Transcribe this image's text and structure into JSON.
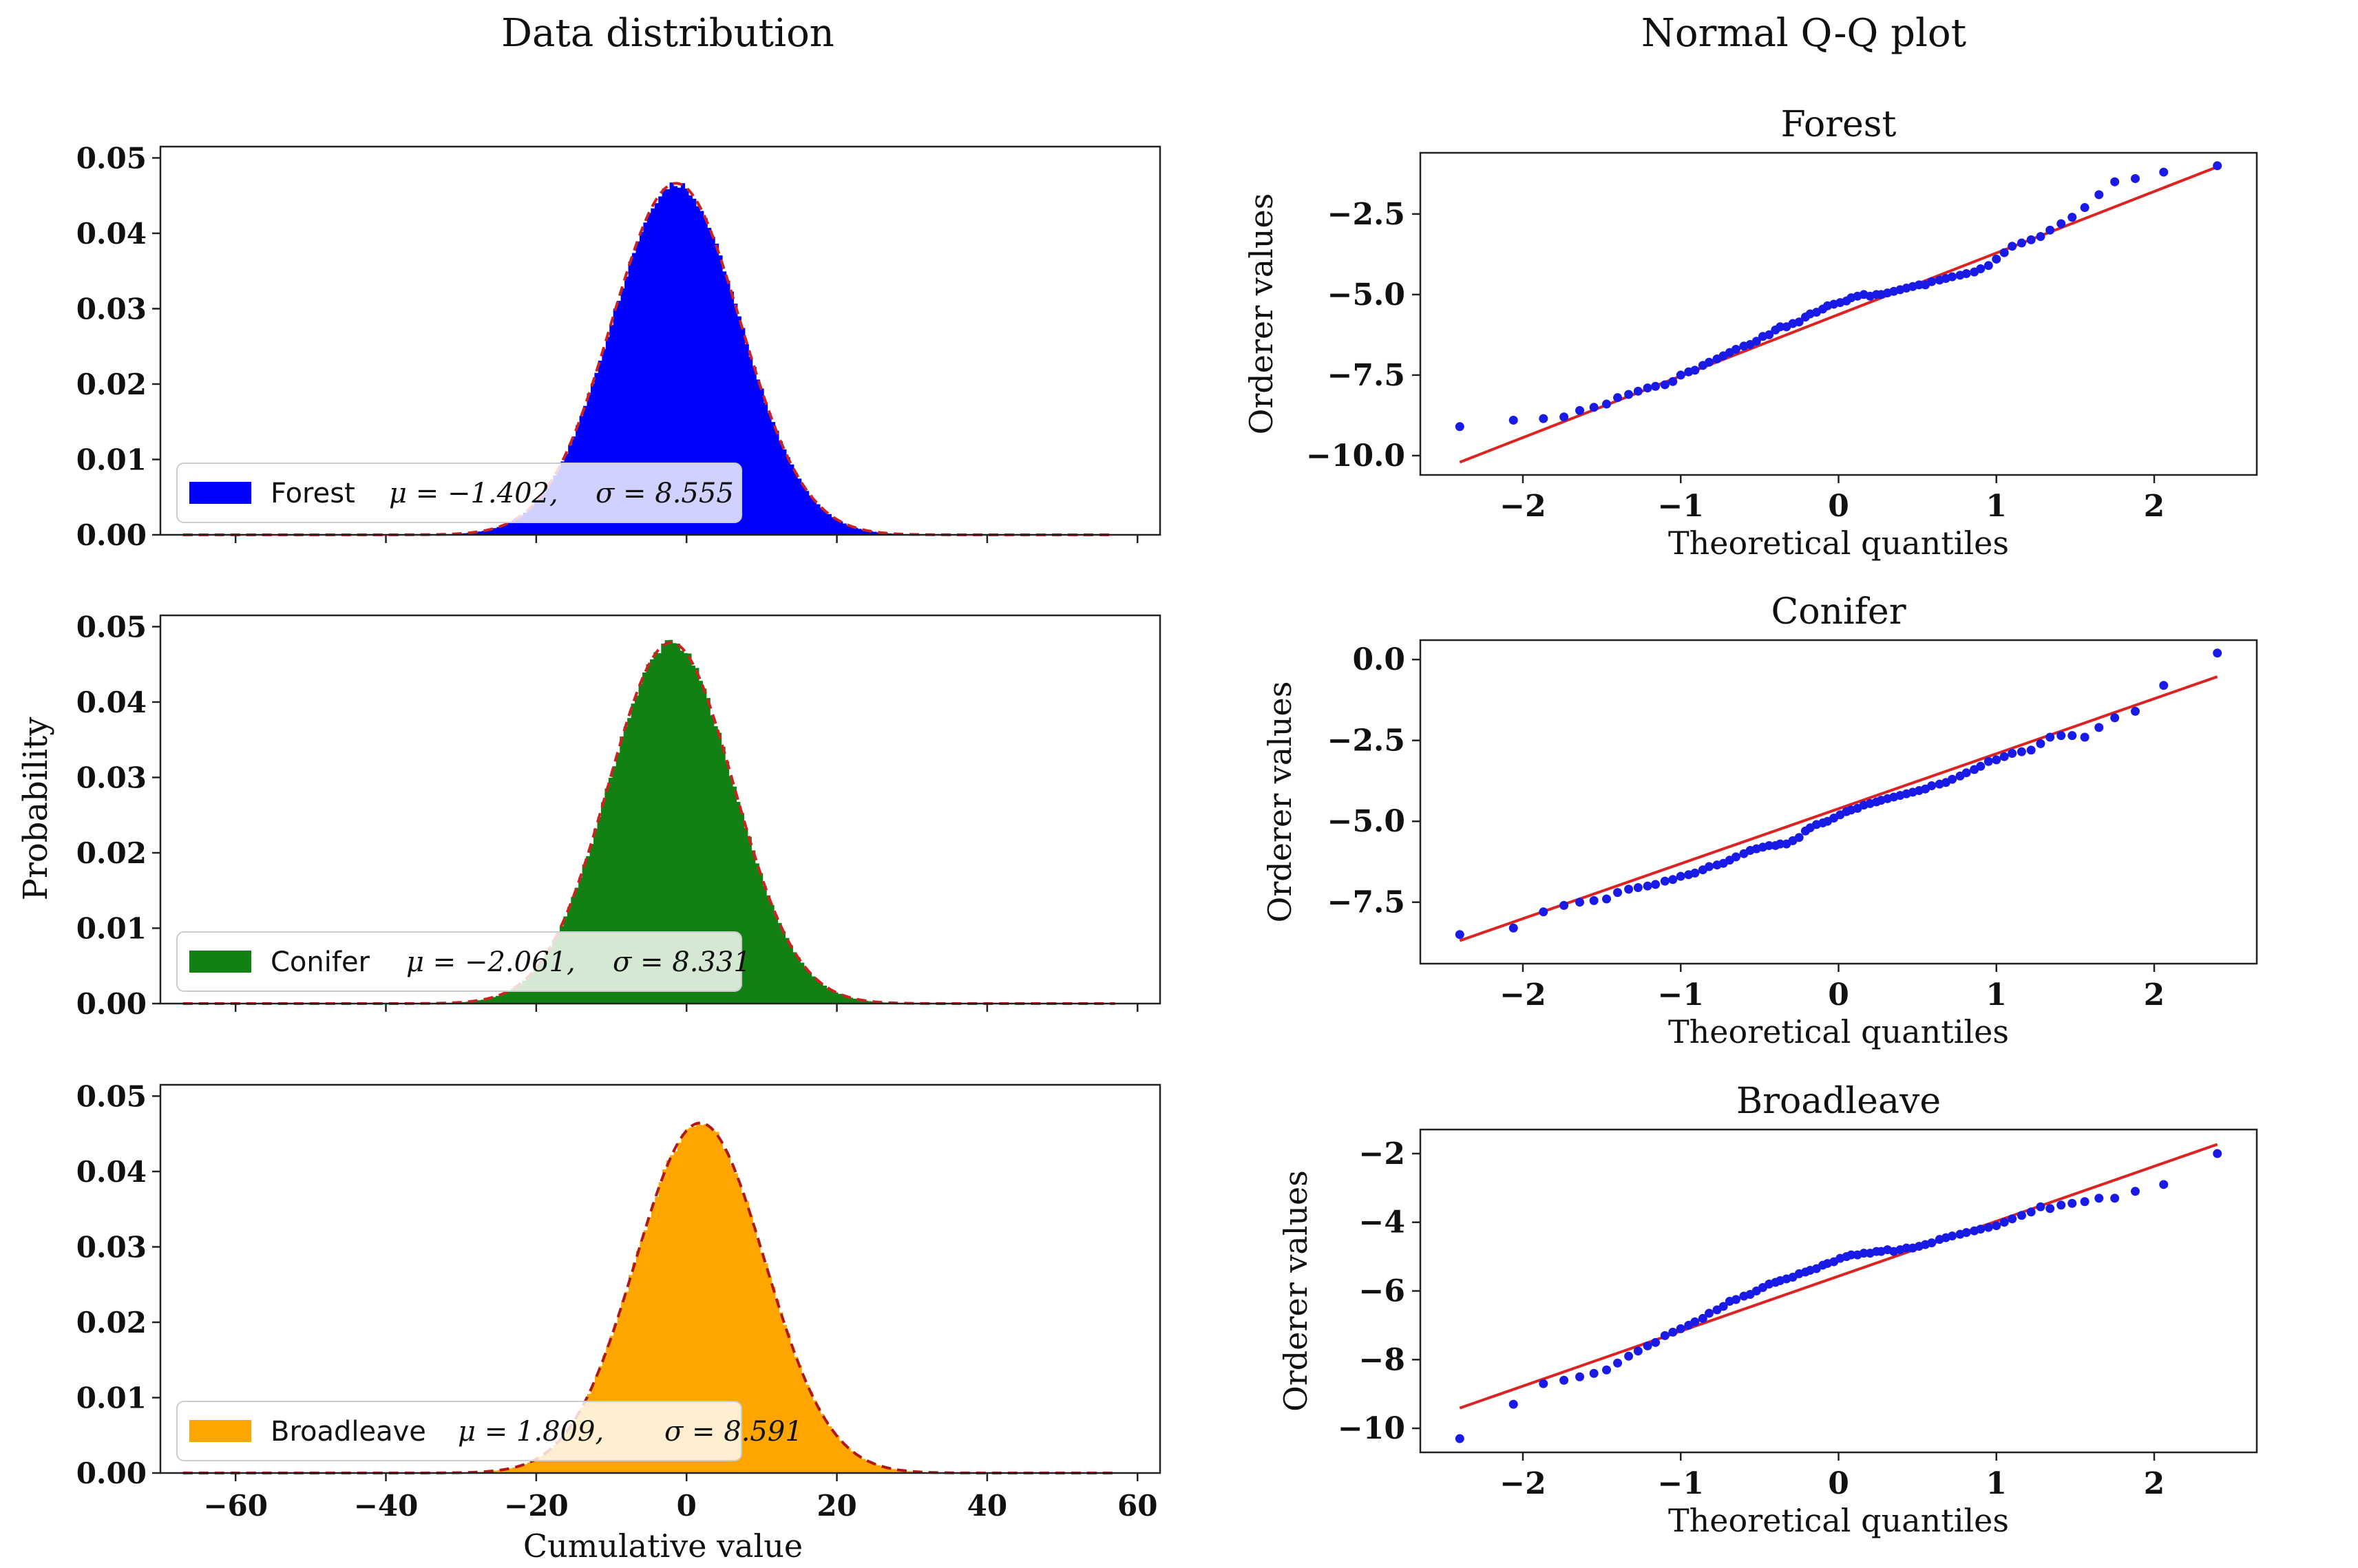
{
  "figure": {
    "left_column_title": "Data distribution",
    "right_column_title": "Normal Q-Q plot",
    "hist_ylabel": "Probability",
    "hist_xlabel": "Cumulative value",
    "qq_xlabel": "Theoretical quantiles",
    "qq_ylabel": "Orderer values"
  },
  "chart_data": [
    {
      "type": "bar",
      "panel": "histogram",
      "series": [
        {
          "name": "Forest",
          "mu_label": "μ = −1.402,",
          "sigma_label": "σ = 8.555",
          "mu": -1.402,
          "sigma": 8.555,
          "color": "#0000ff"
        }
      ],
      "fit_line": {
        "style": "dashed",
        "color": "#cc2222"
      },
      "xlim": [
        -70,
        63
      ],
      "ylim": [
        0,
        0.0515
      ],
      "yticks": [
        0.0,
        0.01,
        0.02,
        0.03,
        0.04,
        0.05
      ],
      "ytick_labels": [
        "0.00",
        "0.01",
        "0.02",
        "0.03",
        "0.04",
        "0.05"
      ],
      "legend": "bottom-left"
    },
    {
      "type": "bar",
      "panel": "histogram",
      "series": [
        {
          "name": "Conifer",
          "mu_label": "μ = −2.061,",
          "sigma_label": "σ = 8.331",
          "mu": -2.061,
          "sigma": 8.331,
          "color": "#138013"
        }
      ],
      "fit_line": {
        "style": "dashed",
        "color": "#cc2222"
      },
      "xlim": [
        -70,
        63
      ],
      "ylim": [
        0,
        0.0515
      ],
      "yticks": [
        0.0,
        0.01,
        0.02,
        0.03,
        0.04,
        0.05
      ],
      "ytick_labels": [
        "0.00",
        "0.01",
        "0.02",
        "0.03",
        "0.04",
        "0.05"
      ],
      "legend": "bottom-left"
    },
    {
      "type": "bar",
      "panel": "histogram",
      "series": [
        {
          "name": "Broadleave",
          "mu_label": "μ = 1.809,",
          "sigma_label": "σ = 8.591",
          "mu": 1.809,
          "sigma": 8.591,
          "color": "#ffa500"
        }
      ],
      "fit_line": {
        "style": "dashed",
        "color": "#b01818"
      },
      "xlim": [
        -70,
        63
      ],
      "ylim": [
        0,
        0.0515
      ],
      "yticks": [
        0.0,
        0.01,
        0.02,
        0.03,
        0.04,
        0.05
      ],
      "ytick_labels": [
        "0.00",
        "0.01",
        "0.02",
        "0.03",
        "0.04",
        "0.05"
      ],
      "xticks": [
        -60,
        -40,
        -20,
        0,
        20,
        40,
        60
      ],
      "xtick_labels": [
        "−60",
        "−40",
        "−20",
        "0",
        "20",
        "40",
        "60"
      ],
      "legend": "bottom-left"
    },
    {
      "type": "scatter",
      "panel": "qq",
      "title": "Forest",
      "xlim": [
        -2.65,
        2.65
      ],
      "ylim": [
        -10.6,
        -0.6
      ],
      "yticks": [
        -10.0,
        -7.5,
        -5.0,
        -2.5
      ],
      "ytick_labels": [
        "−10.0",
        "−7.5",
        "−5.0",
        "−2.5"
      ],
      "xticks": [
        -2,
        -1,
        0,
        1,
        2
      ],
      "xtick_labels": [
        "−2",
        "−1",
        "0",
        "1",
        "2"
      ],
      "fit": {
        "intercept": -5.62,
        "slope": 1.91,
        "x_range": [
          -2.4,
          2.4
        ],
        "color": "#dd2222"
      },
      "points": {
        "x": [
          -2.4,
          -2.06,
          -1.87,
          -1.74,
          -1.64,
          -1.55,
          -1.47,
          -1.4,
          -1.33,
          -1.27,
          -1.21,
          -1.16,
          -1.1,
          -1.05,
          -1.0,
          -0.95,
          -0.91,
          -0.86,
          -0.82,
          -0.77,
          -0.73,
          -0.69,
          -0.65,
          -0.6,
          -0.56,
          -0.52,
          -0.48,
          -0.44,
          -0.4,
          -0.37,
          -0.33,
          -0.29,
          -0.25,
          -0.21,
          -0.18,
          -0.14,
          -0.1,
          -0.07,
          -0.03,
          0.01,
          0.05,
          0.08,
          0.12,
          0.16,
          0.2,
          0.24,
          0.27,
          0.31,
          0.35,
          0.39,
          0.43,
          0.47,
          0.51,
          0.55,
          0.59,
          0.64,
          0.68,
          0.72,
          0.77,
          0.81,
          0.86,
          0.9,
          0.95,
          1.0,
          1.05,
          1.1,
          1.16,
          1.22,
          1.28,
          1.34,
          1.41,
          1.48,
          1.56,
          1.65,
          1.75,
          1.88,
          2.06,
          2.4
        ],
        "y": [
          -9.1,
          -8.9,
          -8.85,
          -8.8,
          -8.6,
          -8.5,
          -8.4,
          -8.2,
          -8.1,
          -8.0,
          -7.9,
          -7.85,
          -7.8,
          -7.7,
          -7.5,
          -7.4,
          -7.35,
          -7.2,
          -7.1,
          -7.0,
          -6.9,
          -6.8,
          -6.7,
          -6.6,
          -6.55,
          -6.45,
          -6.3,
          -6.25,
          -6.1,
          -6.0,
          -6.0,
          -5.9,
          -5.85,
          -5.7,
          -5.6,
          -5.55,
          -5.45,
          -5.35,
          -5.3,
          -5.25,
          -5.2,
          -5.1,
          -5.05,
          -5.0,
          -5.05,
          -5.0,
          -5.0,
          -4.95,
          -4.9,
          -4.85,
          -4.8,
          -4.75,
          -4.7,
          -4.7,
          -4.6,
          -4.55,
          -4.5,
          -4.45,
          -4.4,
          -4.35,
          -4.3,
          -4.2,
          -4.1,
          -3.9,
          -3.7,
          -3.5,
          -3.4,
          -3.3,
          -3.2,
          -3.0,
          -2.8,
          -2.6,
          -2.3,
          -1.9,
          -1.5,
          -1.4,
          -1.2,
          -1.0
        ]
      }
    },
    {
      "type": "scatter",
      "panel": "qq",
      "title": "Conifer",
      "xlim": [
        -2.65,
        2.65
      ],
      "ylim": [
        -9.4,
        0.6
      ],
      "yticks": [
        -7.5,
        -5.0,
        -2.5,
        0.0
      ],
      "ytick_labels": [
        "−7.5",
        "−5.0",
        "−2.5",
        "0.0"
      ],
      "xticks": [
        -2,
        -1,
        0,
        1,
        2
      ],
      "xtick_labels": [
        "−2",
        "−1",
        "0",
        "1",
        "2"
      ],
      "fit": {
        "intercept": -4.61,
        "slope": 1.7,
        "x_range": [
          -2.4,
          2.4
        ],
        "color": "#dd2222"
      },
      "points": {
        "x": [
          -2.4,
          -2.06,
          -1.87,
          -1.74,
          -1.64,
          -1.55,
          -1.47,
          -1.4,
          -1.33,
          -1.27,
          -1.21,
          -1.16,
          -1.1,
          -1.05,
          -1.0,
          -0.95,
          -0.91,
          -0.86,
          -0.82,
          -0.77,
          -0.73,
          -0.69,
          -0.65,
          -0.6,
          -0.56,
          -0.52,
          -0.48,
          -0.44,
          -0.4,
          -0.37,
          -0.33,
          -0.29,
          -0.25,
          -0.21,
          -0.18,
          -0.14,
          -0.1,
          -0.07,
          -0.03,
          0.01,
          0.05,
          0.08,
          0.12,
          0.16,
          0.2,
          0.24,
          0.27,
          0.31,
          0.35,
          0.39,
          0.43,
          0.47,
          0.51,
          0.55,
          0.59,
          0.64,
          0.68,
          0.72,
          0.77,
          0.81,
          0.86,
          0.9,
          0.95,
          1.0,
          1.05,
          1.1,
          1.16,
          1.22,
          1.28,
          1.34,
          1.41,
          1.48,
          1.56,
          1.65,
          1.75,
          1.88,
          2.06,
          2.4
        ],
        "y": [
          -8.5,
          -8.3,
          -7.8,
          -7.6,
          -7.5,
          -7.45,
          -7.4,
          -7.2,
          -7.1,
          -7.05,
          -7.0,
          -6.95,
          -6.85,
          -6.8,
          -6.7,
          -6.65,
          -6.6,
          -6.5,
          -6.4,
          -6.35,
          -6.3,
          -6.2,
          -6.1,
          -6.0,
          -5.9,
          -5.85,
          -5.8,
          -5.75,
          -5.75,
          -5.7,
          -5.7,
          -5.6,
          -5.5,
          -5.3,
          -5.2,
          -5.1,
          -5.05,
          -5.0,
          -4.9,
          -4.8,
          -4.7,
          -4.65,
          -4.6,
          -4.5,
          -4.45,
          -4.4,
          -4.35,
          -4.3,
          -4.25,
          -4.2,
          -4.15,
          -4.1,
          -4.05,
          -4.0,
          -3.9,
          -3.85,
          -3.8,
          -3.7,
          -3.6,
          -3.5,
          -3.4,
          -3.3,
          -3.15,
          -3.1,
          -3.0,
          -2.9,
          -2.85,
          -2.8,
          -2.6,
          -2.4,
          -2.35,
          -2.35,
          -2.4,
          -2.1,
          -1.8,
          -1.6,
          -0.8,
          0.2
        ]
      }
    },
    {
      "type": "scatter",
      "panel": "qq",
      "title": "Broadleave",
      "xlim": [
        -2.65,
        2.65
      ],
      "ylim": [
        -10.7,
        -1.3
      ],
      "yticks": [
        -10,
        -8,
        -6,
        -4,
        -2
      ],
      "ytick_labels": [
        "−10",
        "−8",
        "−6",
        "−4",
        "−2"
      ],
      "xticks": [
        -2,
        -1,
        0,
        1,
        2
      ],
      "xtick_labels": [
        "−2",
        "−1",
        "0",
        "1",
        "2"
      ],
      "fit": {
        "intercept": -5.57,
        "slope": 1.6,
        "x_range": [
          -2.4,
          2.4
        ],
        "color": "#dd2222"
      },
      "points": {
        "x": [
          -2.4,
          -2.06,
          -1.87,
          -1.74,
          -1.64,
          -1.55,
          -1.47,
          -1.4,
          -1.33,
          -1.27,
          -1.21,
          -1.16,
          -1.1,
          -1.05,
          -1.0,
          -0.95,
          -0.91,
          -0.86,
          -0.82,
          -0.77,
          -0.73,
          -0.69,
          -0.65,
          -0.6,
          -0.56,
          -0.52,
          -0.48,
          -0.44,
          -0.4,
          -0.37,
          -0.33,
          -0.29,
          -0.25,
          -0.21,
          -0.18,
          -0.14,
          -0.1,
          -0.07,
          -0.03,
          0.01,
          0.05,
          0.08,
          0.12,
          0.16,
          0.2,
          0.24,
          0.27,
          0.31,
          0.35,
          0.39,
          0.43,
          0.47,
          0.51,
          0.55,
          0.59,
          0.64,
          0.68,
          0.72,
          0.77,
          0.81,
          0.86,
          0.9,
          0.95,
          1.0,
          1.05,
          1.1,
          1.16,
          1.22,
          1.28,
          1.34,
          1.41,
          1.48,
          1.56,
          1.65,
          1.75,
          1.88,
          2.06,
          2.4
        ],
        "y": [
          -10.3,
          -9.3,
          -8.7,
          -8.6,
          -8.5,
          -8.4,
          -8.3,
          -8.1,
          -7.9,
          -7.75,
          -7.6,
          -7.5,
          -7.3,
          -7.2,
          -7.1,
          -7.0,
          -6.9,
          -6.8,
          -6.65,
          -6.55,
          -6.45,
          -6.3,
          -6.25,
          -6.15,
          -6.1,
          -6.0,
          -5.9,
          -5.8,
          -5.75,
          -5.7,
          -5.65,
          -5.6,
          -5.5,
          -5.45,
          -5.4,
          -5.35,
          -5.25,
          -5.2,
          -5.15,
          -5.05,
          -5.0,
          -4.95,
          -4.95,
          -4.9,
          -4.9,
          -4.85,
          -4.85,
          -4.8,
          -4.85,
          -4.8,
          -4.75,
          -4.75,
          -4.7,
          -4.65,
          -4.6,
          -4.5,
          -4.45,
          -4.4,
          -4.35,
          -4.3,
          -4.25,
          -4.2,
          -4.15,
          -4.1,
          -4.0,
          -3.9,
          -3.8,
          -3.7,
          -3.55,
          -3.6,
          -3.5,
          -3.45,
          -3.4,
          -3.3,
          -3.3,
          -3.1,
          -2.9,
          -2.0
        ]
      }
    }
  ]
}
